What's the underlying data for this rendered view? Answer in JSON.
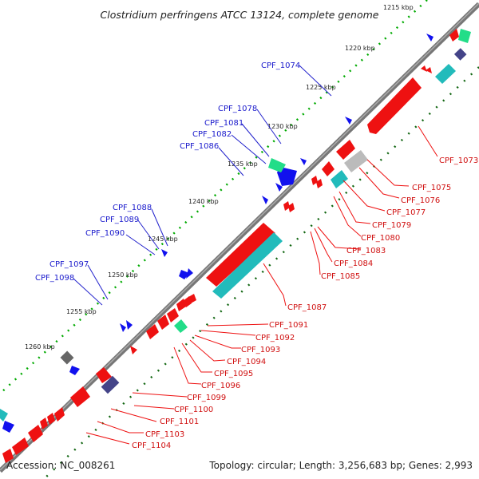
{
  "title": "Clostridium perfringens ATCC 13124, complete genome",
  "footer": {
    "accession": "Accession: NC_008261",
    "summary": "Topology: circular; Length: 3,256,683 bp; Genes: 2,993"
  },
  "colors": {
    "forward_gene": "#ee1111",
    "reverse_gene": "#1111ee",
    "cyan_gene": "#22bbbb",
    "rrna_gene": "#22dd88",
    "other_gene": "#444488",
    "pseudo_gene": "#999999",
    "backbone": "#777777",
    "tick_outer": "#00aa00",
    "tick_inner": "#116611"
  },
  "kbp_labels": [
    "1215 kbp",
    "1220 kbp",
    "1225 kbp",
    "1230 kbp",
    "1235 kbp",
    "1240 kbp",
    "1245 kbp",
    "1250 kbp",
    "1255 kbp",
    "1260 kbp"
  ],
  "blue_labels": [
    "CPF_1074",
    "CPF_1078",
    "CPF_1081",
    "CPF_1082",
    "CPF_1086",
    "CPF_1088",
    "CPF_1089",
    "CPF_1090",
    "CPF_1097",
    "CPF_1098"
  ],
  "red_labels": [
    "CPF_1073",
    "CPF_1075",
    "CPF_1076",
    "CPF_1077",
    "CPF_1079",
    "CPF_1080",
    "CPF_1083",
    "CPF_1084",
    "CPF_1085",
    "CPF_1087",
    "CPF_1091",
    "CPF_1092",
    "CPF_1093",
    "CPF_1094",
    "CPF_1095",
    "CPF_1096",
    "CPF_1099",
    "CPF_1100",
    "CPF_1101",
    "CPF_1103",
    "CPF_1104"
  ]
}
